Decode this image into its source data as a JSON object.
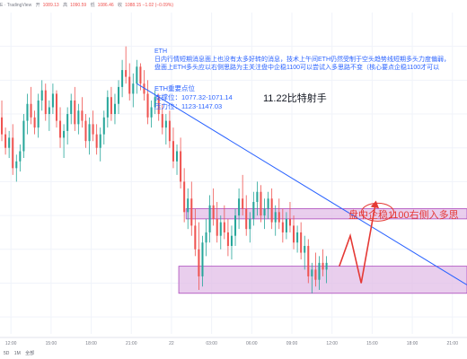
{
  "header": {
    "symbol": "E · TradingView",
    "ohlc": [
      {
        "key": "开",
        "val": "1089.13"
      },
      {
        "key": "高",
        "val": "1090.59"
      },
      {
        "key": "低",
        "val": "1086.46"
      },
      {
        "key": "收",
        "val": "1088.15 −1.02 (−0.09%)"
      }
    ]
  },
  "analysis": {
    "title": "ETH",
    "lines": [
      "日内行情短期消息面上也没有太多好转的消息，技术上午间ETH仍然受制于空头趋势线短期多头力度偏弱，",
      "盘面上ETH多头应以右侧思路为主关注盘中企稳1100可以尝试入多思路不变（核心要点企稳1100才可以"
    ]
  },
  "levels": {
    "title": "ETH重要点位",
    "support": "支撑位：1077.32-1071.14",
    "resistance": "压力位：1123-1147.03"
  },
  "notes": {
    "date": "11.22比特射手",
    "entry": "盘中企稳1100右侧入多思"
  },
  "bottom": {
    "ranges": [
      "5D",
      "1M",
      "全部"
    ]
  },
  "colors": {
    "up": "#26a69a",
    "down": "#ef5350",
    "trendline": "#2962ff",
    "zone_fill": "#e1bee7",
    "zone_border": "#ab47bc",
    "annotation": "#e53935",
    "grid": "#f0f3fa"
  },
  "chart_data": {
    "type": "candlestick",
    "x_ticks": [
      "12:00",
      "15:00",
      "18:00",
      "21:00",
      "22",
      "03:00",
      "06:00",
      "09:00",
      "12:00",
      "15:00",
      "18:00",
      "21:00"
    ],
    "candles": [
      [
        1129,
        1134,
        1122,
        1124
      ],
      [
        1124,
        1126,
        1118,
        1120
      ],
      [
        1120,
        1125,
        1117,
        1123
      ],
      [
        1123,
        1127,
        1112,
        1114
      ],
      [
        1114,
        1118,
        1110,
        1116
      ],
      [
        1116,
        1121,
        1113,
        1119
      ],
      [
        1119,
        1130,
        1117,
        1128
      ],
      [
        1128,
        1136,
        1124,
        1133
      ],
      [
        1133,
        1138,
        1127,
        1129
      ],
      [
        1129,
        1131,
        1124,
        1126
      ],
      [
        1126,
        1136,
        1123,
        1134
      ],
      [
        1134,
        1140,
        1131,
        1137
      ],
      [
        1137,
        1139,
        1128,
        1130
      ],
      [
        1130,
        1134,
        1125,
        1132
      ],
      [
        1132,
        1139,
        1130,
        1136
      ],
      [
        1136,
        1137,
        1126,
        1128
      ],
      [
        1128,
        1132,
        1120,
        1123
      ],
      [
        1123,
        1127,
        1117,
        1125
      ],
      [
        1125,
        1132,
        1121,
        1130
      ],
      [
        1130,
        1136,
        1127,
        1134
      ],
      [
        1134,
        1138,
        1125,
        1127
      ],
      [
        1127,
        1133,
        1124,
        1131
      ],
      [
        1131,
        1135,
        1126,
        1128
      ],
      [
        1128,
        1130,
        1120,
        1122
      ],
      [
        1122,
        1129,
        1118,
        1127
      ],
      [
        1127,
        1131,
        1122,
        1124
      ],
      [
        1124,
        1127,
        1118,
        1120
      ],
      [
        1120,
        1126,
        1116,
        1124
      ],
      [
        1124,
        1131,
        1121,
        1129
      ],
      [
        1129,
        1137,
        1126,
        1135
      ],
      [
        1135,
        1138,
        1128,
        1130
      ],
      [
        1130,
        1136,
        1127,
        1133
      ],
      [
        1133,
        1140,
        1130,
        1138
      ],
      [
        1138,
        1146,
        1135,
        1143
      ],
      [
        1143,
        1150,
        1139,
        1141
      ],
      [
        1141,
        1145,
        1134,
        1136
      ],
      [
        1136,
        1142,
        1132,
        1139
      ],
      [
        1139,
        1146,
        1136,
        1144
      ],
      [
        1144,
        1145,
        1137,
        1139
      ],
      [
        1139,
        1143,
        1134,
        1136
      ],
      [
        1136,
        1140,
        1127,
        1129
      ],
      [
        1129,
        1134,
        1126,
        1132
      ],
      [
        1132,
        1137,
        1130,
        1135
      ],
      [
        1135,
        1136,
        1128,
        1130
      ],
      [
        1130,
        1133,
        1124,
        1126
      ],
      [
        1126,
        1130,
        1121,
        1128
      ],
      [
        1128,
        1131,
        1120,
        1122
      ],
      [
        1122,
        1126,
        1114,
        1116
      ],
      [
        1116,
        1121,
        1112,
        1119
      ],
      [
        1119,
        1123,
        1108,
        1110
      ],
      [
        1110,
        1114,
        1098,
        1101
      ],
      [
        1101,
        1108,
        1096,
        1105
      ],
      [
        1105,
        1110,
        1094,
        1097
      ],
      [
        1097,
        1102,
        1088,
        1090
      ],
      [
        1090,
        1098,
        1078,
        1082
      ],
      [
        1082,
        1094,
        1079,
        1092
      ],
      [
        1092,
        1099,
        1088,
        1095
      ],
      [
        1095,
        1106,
        1092,
        1103
      ],
      [
        1103,
        1108,
        1097,
        1099
      ],
      [
        1099,
        1104,
        1092,
        1094
      ],
      [
        1094,
        1100,
        1090,
        1098
      ],
      [
        1098,
        1103,
        1093,
        1095
      ],
      [
        1095,
        1099,
        1088,
        1091
      ],
      [
        1091,
        1097,
        1087,
        1094
      ],
      [
        1094,
        1102,
        1091,
        1100
      ],
      [
        1100,
        1108,
        1096,
        1105
      ],
      [
        1105,
        1112,
        1100,
        1102
      ],
      [
        1102,
        1106,
        1094,
        1096
      ],
      [
        1096,
        1101,
        1092,
        1099
      ],
      [
        1099,
        1107,
        1097,
        1104
      ],
      [
        1104,
        1110,
        1100,
        1107
      ],
      [
        1107,
        1109,
        1098,
        1100
      ],
      [
        1100,
        1105,
        1096,
        1102
      ],
      [
        1102,
        1107,
        1099,
        1105
      ],
      [
        1105,
        1108,
        1096,
        1098
      ],
      [
        1098,
        1103,
        1094,
        1101
      ],
      [
        1101,
        1105,
        1096,
        1098
      ],
      [
        1098,
        1102,
        1092,
        1095
      ],
      [
        1095,
        1101,
        1093,
        1099
      ],
      [
        1099,
        1104,
        1095,
        1097
      ],
      [
        1097,
        1100,
        1090,
        1092
      ],
      [
        1092,
        1097,
        1089,
        1095
      ],
      [
        1095,
        1098,
        1087,
        1089
      ],
      [
        1089,
        1094,
        1084,
        1091
      ],
      [
        1091,
        1093,
        1080,
        1082
      ],
      [
        1082,
        1086,
        1077,
        1084
      ],
      [
        1084,
        1089,
        1079,
        1081
      ],
      [
        1081,
        1088,
        1078,
        1086
      ],
      [
        1086,
        1090,
        1082,
        1084
      ],
      [
        1084,
        1088,
        1080,
        1086
      ]
    ],
    "trendline": [
      {
        "x": 37.5,
        "price": 1139
      },
      {
        "x": 112,
        "price": 1090
      }
    ],
    "zones": [
      {
        "name": "resistance-zone",
        "from": 1099,
        "to": 1102,
        "start_x": 51
      },
      {
        "name": "support-zone",
        "from": 1077,
        "to": 1085,
        "start_x": 49
      }
    ],
    "projection": {
      "points": [
        {
          "x": 93,
          "price": 1085
        },
        {
          "x": 96,
          "price": 1094
        },
        {
          "x": 99,
          "price": 1080
        },
        {
          "x": 103,
          "price": 1104
        }
      ]
    },
    "target_ellipse": {
      "x": 103.5,
      "price": 1101
    },
    "price_range": [
      1065,
      1160
    ],
    "x_range": [
      0,
      128
    ]
  }
}
